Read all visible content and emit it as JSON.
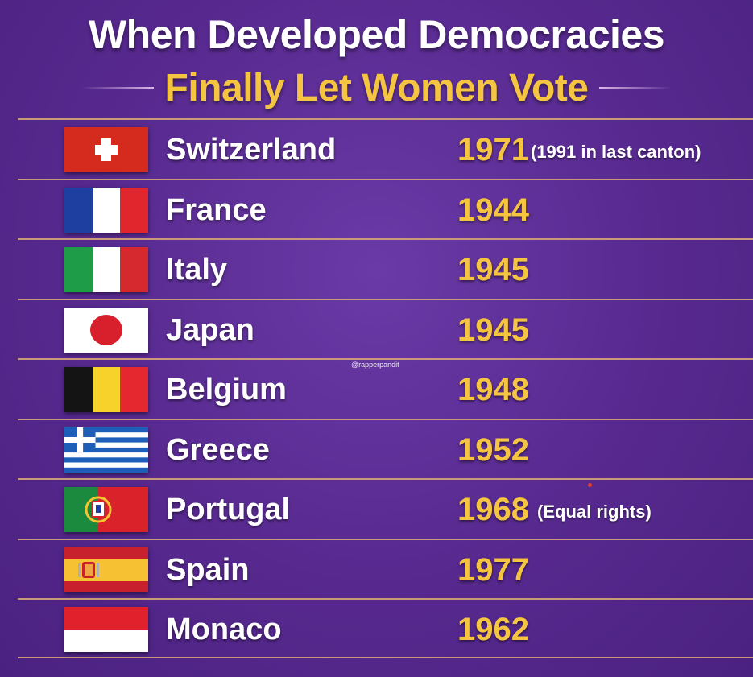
{
  "title": {
    "line1": "When Developed Democracies",
    "line2": "Finally Let Women Vote"
  },
  "watermark": "@rapperpandit",
  "rows": [
    {
      "country": "Switzerland",
      "year": "1971",
      "note": "(1991 in last canton)",
      "flag": "switzerland-flag-icon"
    },
    {
      "country": "France",
      "year": "1944",
      "note": "",
      "flag": "france-flag-icon"
    },
    {
      "country": "Italy",
      "year": "1945",
      "note": "",
      "flag": "italy-flag-icon"
    },
    {
      "country": "Japan",
      "year": "1945",
      "note": "",
      "flag": "japan-flag-icon"
    },
    {
      "country": "Belgium",
      "year": "1948",
      "note": "",
      "flag": "belgium-flag-icon"
    },
    {
      "country": "Greece",
      "year": "1952",
      "note": "",
      "flag": "greece-flag-icon"
    },
    {
      "country": "Portugal",
      "year": "1968",
      "note": "(Equal rights)",
      "flag": "portugal-flag-icon"
    },
    {
      "country": "Spain",
      "year": "1977",
      "note": "",
      "flag": "spain-flag-icon"
    },
    {
      "country": "Monaco",
      "year": "1962",
      "note": "",
      "flag": "monaco-flag-icon"
    }
  ],
  "colors": {
    "background": "#57298f",
    "title_primary": "#ffffff",
    "title_accent": "#f5c542",
    "year": "#f5c542",
    "divider": "#c99a7a"
  }
}
